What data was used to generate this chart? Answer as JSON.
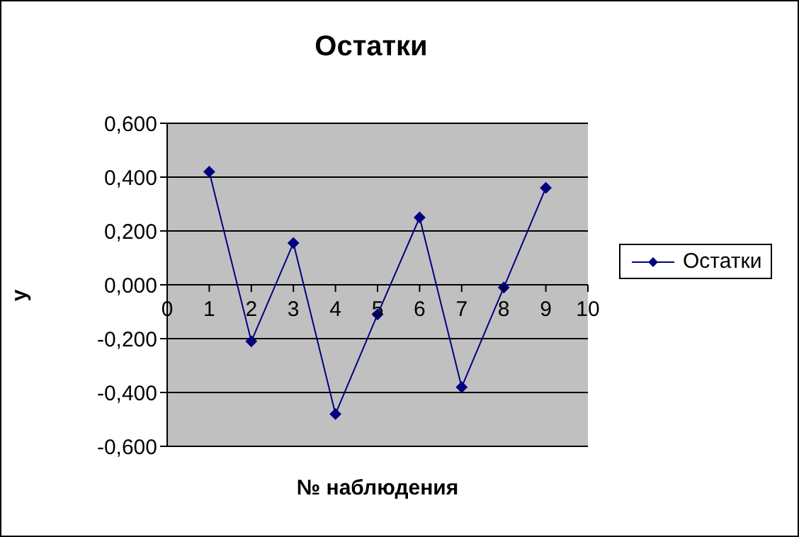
{
  "chart_data": {
    "type": "line",
    "title": "Остатки",
    "xlabel": "№ наблюдения",
    "ylabel": "y",
    "x": [
      1,
      2,
      3,
      4,
      5,
      6,
      7,
      8,
      9
    ],
    "series": [
      {
        "name": "Остатки",
        "color": "#000080",
        "values": [
          0.42,
          -0.21,
          0.155,
          -0.48,
          -0.11,
          0.25,
          -0.38,
          -0.01,
          0.36
        ]
      }
    ],
    "xlim": [
      0,
      10
    ],
    "xticks": [
      0,
      1,
      2,
      3,
      4,
      5,
      6,
      7,
      8,
      9,
      10
    ],
    "ylim": [
      -0.6,
      0.6
    ],
    "yticks": [
      {
        "value": -0.6,
        "label": "-0,600"
      },
      {
        "value": -0.4,
        "label": "-0,400"
      },
      {
        "value": -0.2,
        "label": "-0,200"
      },
      {
        "value": 0,
        "label": "0,000"
      },
      {
        "value": 0.2,
        "label": "0,200"
      },
      {
        "value": 0.4,
        "label": "0,400"
      },
      {
        "value": 0.6,
        "label": "0,600"
      }
    ],
    "grid": "y",
    "legend": "right",
    "marker": "diamond",
    "line_style": "solid"
  }
}
